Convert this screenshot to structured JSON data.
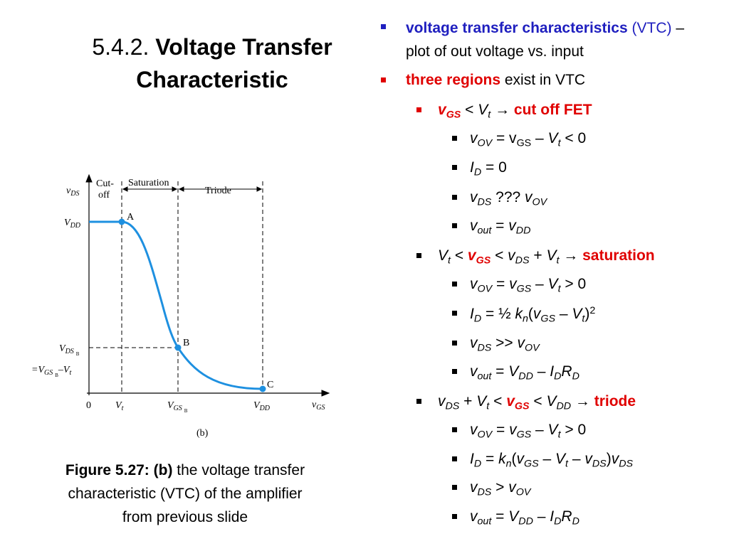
{
  "title": {
    "number": "5.4.2.",
    "bold": [
      "Voltage Transfer",
      "Characteristic"
    ]
  },
  "figure": {
    "y_axis": [
      "v",
      "DS"
    ],
    "x_axis": [
      "v",
      "GS"
    ],
    "vdd_y": [
      "V",
      "DD"
    ],
    "vds_b": [
      "V",
      "DS",
      "B"
    ],
    "vds_b_eq": [
      "=V",
      "GS",
      "B",
      "–V",
      "t"
    ],
    "origin": "0",
    "vt": [
      "V",
      "t"
    ],
    "vgs_b": [
      "V",
      "GS",
      "B"
    ],
    "vdd_x": [
      "V",
      "DD"
    ],
    "points": [
      "A",
      "B",
      "C"
    ],
    "regions": {
      "cutoff": [
        "Cut-",
        "off"
      ],
      "saturation": "Saturation",
      "triode": "Triode"
    },
    "panel": "(b)"
  },
  "caption": {
    "bold": "Figure 5.27: (b)",
    "lines": [
      " the voltage transfer",
      "characteristic (VTC) of the amplifier",
      "from previous slide"
    ]
  },
  "bullets": [
    [
      "voltage transfer characteristics",
      " (VTC)",
      " – plot of out voltage vs. input"
    ],
    [
      "three regions",
      " exist in VTC"
    ],
    [
      "v",
      "GS",
      " < ",
      "V",
      "t",
      " → ",
      "cut off FET"
    ],
    [
      "v",
      "OV",
      " = v",
      "GS",
      " – ",
      "V",
      "t",
      " < 0"
    ],
    [
      "I",
      "D",
      " = 0"
    ],
    [
      "v",
      "DS",
      " ??? ",
      "v",
      "OV"
    ],
    [
      "v",
      "out",
      " = ",
      "v",
      "DD"
    ],
    [
      "V",
      "t",
      " < ",
      "v",
      "GS",
      " < ",
      "v",
      "DS",
      " + ",
      "V",
      "t",
      " → ",
      "saturation"
    ],
    [
      "v",
      "OV",
      " = ",
      "v",
      "GS",
      " – ",
      "V",
      "t",
      " > 0"
    ],
    [
      "I",
      "D",
      " = ½ ",
      "k",
      "n",
      "(",
      "v",
      "GS",
      " – ",
      "V",
      "t",
      ")",
      "2"
    ],
    [
      "v",
      "DS",
      " >> ",
      "v",
      "OV"
    ],
    [
      "v",
      "out",
      " = ",
      "V",
      "DD",
      " – ",
      "I",
      "D",
      "R",
      "D"
    ],
    [
      "v",
      "DS",
      " + ",
      "V",
      "t",
      " < ",
      "v",
      "GS",
      " < ",
      "V",
      "DD",
      " → ",
      "triode"
    ],
    [
      "v",
      "OV",
      " = ",
      "v",
      "GS",
      " – ",
      "V",
      "t",
      " > 0"
    ],
    [
      "I",
      "D",
      " = ",
      "k",
      "n",
      "(",
      "v",
      "GS",
      " – ",
      "V",
      "t",
      " – ",
      "v",
      "DS",
      ")",
      "v",
      "DS"
    ],
    [
      "v",
      "DS",
      " > ",
      "v",
      "OV"
    ],
    [
      "v",
      "out",
      " = ",
      "V",
      "DD",
      " – ",
      "I",
      "D",
      "R",
      "D"
    ]
  ]
}
